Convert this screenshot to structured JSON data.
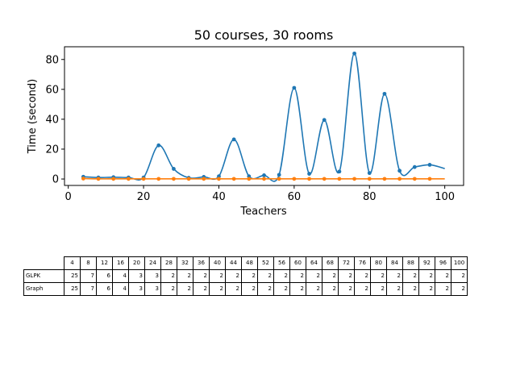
{
  "chart_data": {
    "type": "line",
    "title": "50 courses, 30 rooms",
    "xlabel": "Teachers",
    "ylabel": "Time (second)",
    "xlim": [
      -1,
      105
    ],
    "ylim": [
      -4.3,
      88.5
    ],
    "xticks": [
      0,
      20,
      40,
      60,
      80,
      100
    ],
    "yticks": [
      0,
      20,
      40,
      60,
      80
    ],
    "grid": false,
    "colors": [
      "#1f77b4",
      "#ff7f0e"
    ],
    "x": [
      4,
      8,
      12,
      16,
      20,
      24,
      28,
      32,
      36,
      40,
      44,
      48,
      52,
      56,
      60,
      64,
      68,
      72,
      76,
      80,
      84,
      88,
      92,
      96,
      100
    ],
    "series": [
      {
        "values": [
          1.5,
          1.0,
          1.2,
          1.0,
          1.0,
          22.5,
          6.8,
          0.8,
          1.4,
          1.8,
          26.5,
          1.8,
          2.5,
          2.8,
          61.0,
          3.5,
          39.5,
          5.0,
          84.0,
          4.0,
          57.0,
          5.5,
          8.0,
          9.5,
          null
        ],
        "end_value": 7.0
      },
      {
        "values": [
          0.3,
          0.1,
          0.1,
          0.1,
          0.1,
          0.1,
          0.1,
          0.1,
          0.1,
          0.1,
          0.1,
          0.1,
          0.1,
          0.1,
          0.1,
          0.1,
          0.1,
          0.1,
          0.1,
          0.1,
          0.1,
          0.1,
          0.1,
          0.1,
          null
        ],
        "end_value": 0.1
      }
    ]
  },
  "table": {
    "columns": [
      "4",
      "8",
      "12",
      "16",
      "20",
      "24",
      "28",
      "32",
      "36",
      "40",
      "44",
      "48",
      "52",
      "56",
      "60",
      "64",
      "68",
      "72",
      "76",
      "80",
      "84",
      "88",
      "92",
      "96",
      "100"
    ],
    "rows": [
      {
        "label": "GLPK",
        "values": [
          "25",
          "7",
          "6",
          "4",
          "3",
          "3",
          "2",
          "2",
          "2",
          "2",
          "2",
          "2",
          "2",
          "2",
          "2",
          "2",
          "2",
          "2",
          "2",
          "2",
          "2",
          "2",
          "2",
          "2",
          "2"
        ]
      },
      {
        "label": "Graph",
        "values": [
          "25",
          "7",
          "6",
          "4",
          "3",
          "3",
          "2",
          "2",
          "2",
          "2",
          "2",
          "2",
          "2",
          "2",
          "2",
          "2",
          "2",
          "2",
          "2",
          "2",
          "2",
          "2",
          "2",
          "2",
          "2"
        ]
      }
    ]
  }
}
